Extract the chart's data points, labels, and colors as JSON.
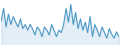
{
  "values": [
    60,
    75,
    52,
    68,
    55,
    65,
    58,
    52,
    62,
    50,
    55,
    48,
    55,
    50,
    42,
    52,
    48,
    40,
    52,
    48,
    42,
    55,
    48,
    40,
    48,
    45,
    55,
    75,
    58,
    80,
    55,
    70,
    50,
    62,
    48,
    58,
    45,
    65,
    40,
    55,
    48,
    40,
    52,
    45,
    38,
    50,
    43,
    38,
    46,
    40
  ],
  "line_color": "#4393c3",
  "bg_color": "#ffffff",
  "linewidth": 0.7
}
